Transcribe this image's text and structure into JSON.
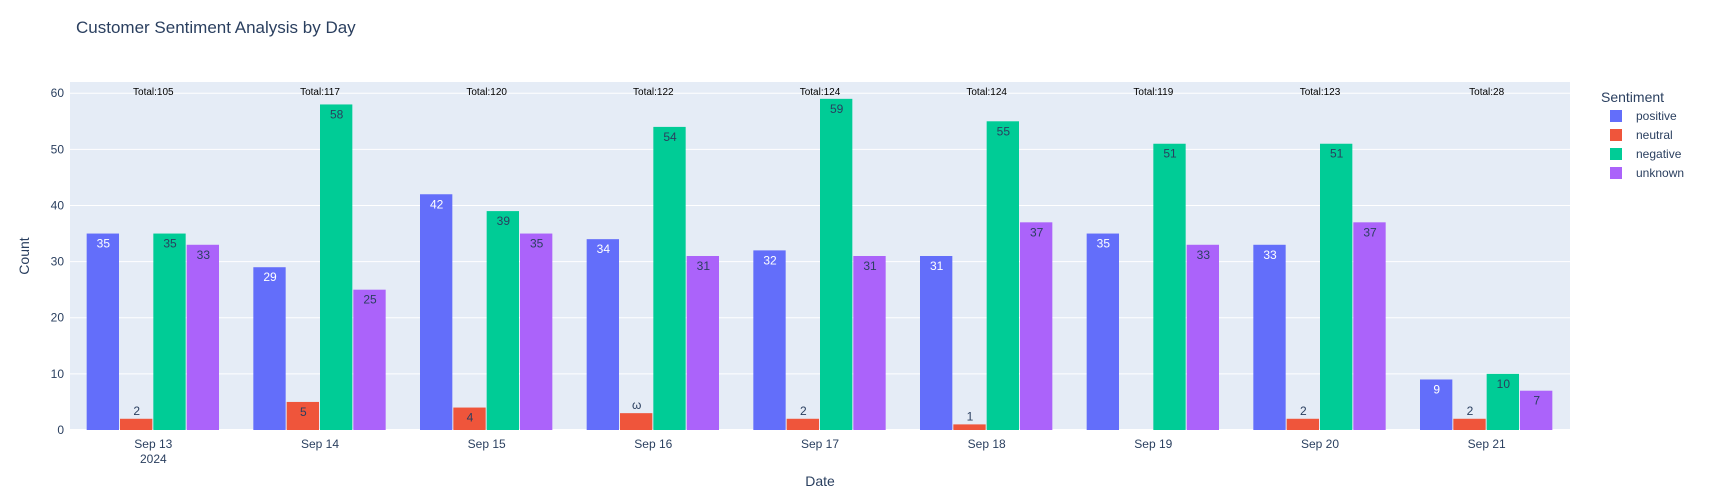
{
  "chart_data": {
    "type": "bar",
    "title": "Customer Sentiment Analysis by Day",
    "xlabel": "Date",
    "ylabel": "Count",
    "ylim": [
      0,
      62
    ],
    "yticks": [
      0,
      10,
      20,
      30,
      40,
      50,
      60
    ],
    "grid": true,
    "legend_title": "Sentiment",
    "legend_position": "right",
    "categories": [
      "Sep 13",
      "Sep 14",
      "Sep 15",
      "Sep 16",
      "Sep 17",
      "Sep 18",
      "Sep 19",
      "Sep 20",
      "Sep 21"
    ],
    "category_sublabels": [
      "2024",
      "",
      "",
      "",
      "",
      "",
      "",
      "",
      ""
    ],
    "totals": [
      "Total:105",
      "Total:117",
      "Total:120",
      "Total:122",
      "Total:124",
      "Total:124",
      "Total:119",
      "Total:123",
      "Total:28"
    ],
    "series": [
      {
        "name": "positive",
        "color": "#636efa",
        "values": [
          35,
          29,
          42,
          34,
          32,
          31,
          35,
          33,
          9
        ],
        "labels": [
          "35",
          "29",
          "42",
          "34",
          "32",
          "31",
          "35",
          "33",
          "9"
        ]
      },
      {
        "name": "neutral",
        "color": "#ef553b",
        "values": [
          2,
          5,
          4,
          3,
          2,
          1,
          0,
          2,
          2
        ],
        "labels": [
          "2",
          "5",
          "4",
          "ω",
          "2",
          "1",
          "",
          "2",
          "2"
        ]
      },
      {
        "name": "negative",
        "color": "#00cc96",
        "values": [
          35,
          58,
          39,
          54,
          59,
          55,
          51,
          51,
          10
        ],
        "labels": [
          "35",
          "58",
          "39",
          "54",
          "59",
          "55",
          "51",
          "51",
          "10"
        ]
      },
      {
        "name": "unknown",
        "color": "#ab63fa",
        "values": [
          33,
          25,
          35,
          31,
          31,
          37,
          33,
          37,
          7
        ],
        "labels": [
          "33",
          "25",
          "35",
          "31",
          "31",
          "37",
          "33",
          "37",
          "7"
        ]
      }
    ]
  }
}
